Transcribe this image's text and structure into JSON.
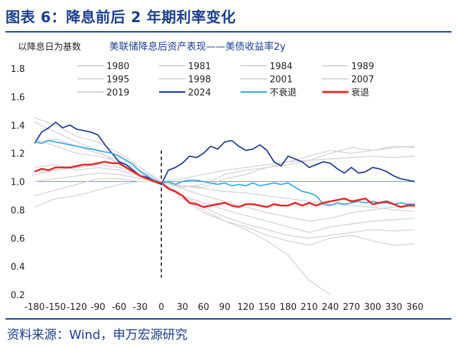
{
  "header": {
    "title": "图表 6：降息前后 2 年期利率变化"
  },
  "footer": {
    "source": "资料来源：Wind，申万宏源研究"
  },
  "chart_data": {
    "type": "line",
    "title": "美联储降息后资产表现——美债收益率2y",
    "ylabel": "以降息日为基数",
    "xlabel": "",
    "xlim": [
      -180,
      360
    ],
    "ylim": [
      0.2,
      1.8
    ],
    "xticks": [
      -180,
      -150,
      -120,
      -90,
      -60,
      -30,
      0,
      30,
      60,
      90,
      120,
      150,
      180,
      210,
      240,
      270,
      300,
      330,
      360
    ],
    "yticks": [
      "0.2",
      "0.4",
      "0.6",
      "0.8",
      "1.0",
      "1.2",
      "1.4",
      "1.6",
      "1.8"
    ],
    "reference_line_y": 1.0,
    "vertical_marker_x": 0,
    "legend_placement": "top",
    "colors": {
      "historical": "#d3d3d3",
      "y2024": "#1f3a8f",
      "no_recession": "#3aa8e0",
      "recession": "#e8262b",
      "reference": "#7f97c9",
      "marker": "#000000"
    },
    "series": [
      {
        "name": "1980",
        "x": [
          -180,
          -150,
          -120,
          -90,
          -60,
          -30,
          0,
          30,
          60,
          90,
          120,
          150,
          180,
          210,
          240
        ],
        "values": [
          1.42,
          1.35,
          1.28,
          1.22,
          1.12,
          1.05,
          1.0,
          0.88,
          0.78,
          0.72,
          0.66,
          0.58,
          0.48,
          0.3,
          0.2
        ]
      },
      {
        "name": "1981",
        "x": [
          -180,
          -150,
          -120,
          -90,
          -60,
          -30,
          0,
          30,
          60,
          90,
          120,
          150,
          180,
          210,
          240,
          270,
          300,
          330,
          360
        ],
        "values": [
          0.82,
          0.88,
          0.9,
          0.94,
          0.98,
          1.0,
          1.0,
          0.97,
          0.96,
          1.02,
          1.05,
          1.1,
          1.12,
          1.15,
          1.2,
          1.24,
          1.22,
          1.24,
          1.25
        ]
      },
      {
        "name": "1984",
        "x": [
          -180,
          -150,
          -120,
          -90,
          -60,
          -30,
          0,
          30,
          60,
          90,
          120,
          150,
          180,
          210,
          240,
          270,
          300,
          330,
          360
        ],
        "values": [
          1.45,
          1.4,
          1.32,
          1.28,
          1.2,
          1.1,
          1.0,
          0.95,
          0.9,
          0.86,
          0.82,
          0.78,
          0.75,
          0.72,
          0.74,
          0.78,
          0.8,
          0.82,
          0.84
        ]
      },
      {
        "name": "1989",
        "x": [
          -180,
          -150,
          -120,
          -90,
          -60,
          -30,
          0,
          30,
          60,
          90,
          120,
          150,
          180,
          210,
          240,
          270,
          300,
          330,
          360
        ],
        "values": [
          0.9,
          0.94,
          0.98,
          1.02,
          1.02,
          1.0,
          1.0,
          0.97,
          0.95,
          0.93,
          0.92,
          0.9,
          0.88,
          0.86,
          0.84,
          0.83,
          0.82,
          0.8,
          0.79
        ]
      },
      {
        "name": "1995",
        "x": [
          -180,
          -150,
          -120,
          -90,
          -60,
          -30,
          0,
          30,
          60,
          90,
          120,
          150,
          180,
          210,
          240,
          270,
          300,
          330,
          360
        ],
        "values": [
          1.05,
          1.08,
          1.1,
          1.12,
          1.1,
          1.05,
          1.0,
          1.02,
          1.05,
          1.08,
          1.1,
          1.12,
          1.14,
          1.15,
          1.16,
          1.17,
          1.18,
          1.17,
          1.18
        ]
      },
      {
        "name": "1998",
        "x": [
          -180,
          -150,
          -120,
          -90,
          -60,
          -30,
          0,
          30,
          60,
          90,
          120,
          150,
          180,
          210,
          240,
          270,
          300,
          330,
          360
        ],
        "values": [
          1.1,
          1.12,
          1.08,
          1.1,
          1.08,
          1.04,
          1.0,
          0.96,
          0.98,
          1.05,
          1.08,
          1.1,
          1.14,
          1.18,
          1.22,
          1.2,
          1.22,
          1.25,
          1.24
        ]
      },
      {
        "name": "2001",
        "x": [
          -180,
          -150,
          -120,
          -90,
          -60,
          -30,
          0,
          30,
          60,
          90,
          120,
          150,
          180,
          210,
          240,
          270,
          300,
          330,
          360
        ],
        "values": [
          1.3,
          1.25,
          1.2,
          1.18,
          1.14,
          1.08,
          1.0,
          0.88,
          0.8,
          0.72,
          0.68,
          0.62,
          0.58,
          0.55,
          0.6,
          0.62,
          0.58,
          0.55,
          0.56
        ]
      },
      {
        "name": "2007",
        "x": [
          -180,
          -150,
          -120,
          -90,
          -60,
          -30,
          0,
          30,
          60,
          90,
          120,
          150,
          180,
          210,
          240,
          270,
          300,
          330,
          360
        ],
        "values": [
          1.28,
          1.3,
          1.25,
          1.2,
          1.15,
          1.05,
          1.0,
          0.9,
          0.82,
          0.75,
          0.7,
          0.66,
          0.62,
          0.6,
          0.62,
          0.64,
          0.66,
          0.65,
          0.66
        ]
      },
      {
        "name": "2019",
        "x": [
          -180,
          -150,
          -120,
          -90,
          -60,
          -30,
          0,
          30,
          60,
          90,
          120,
          150,
          180,
          210,
          240,
          270,
          300,
          330,
          360
        ],
        "values": [
          1.0,
          1.02,
          1.04,
          1.06,
          1.05,
          1.02,
          1.0,
          0.9,
          0.85,
          0.8,
          0.76,
          0.72,
          0.68,
          0.64,
          0.68,
          0.7,
          0.72,
          0.73,
          0.74
        ]
      },
      {
        "name": "2024",
        "x": [
          -180,
          -170,
          -160,
          -150,
          -140,
          -130,
          -120,
          -110,
          -100,
          -90,
          -80,
          -70,
          -60,
          -50,
          -40,
          -30,
          -20,
          -10,
          0,
          10,
          20,
          30,
          40,
          50,
          60,
          70,
          80,
          90,
          100,
          110,
          120,
          130,
          140,
          150,
          160,
          170,
          180,
          190,
          200,
          210,
          220,
          230,
          240,
          250,
          260,
          270,
          280,
          290,
          300,
          310,
          320,
          330,
          340,
          350,
          360
        ],
        "values": [
          1.27,
          1.35,
          1.38,
          1.42,
          1.38,
          1.4,
          1.37,
          1.36,
          1.35,
          1.33,
          1.26,
          1.2,
          1.14,
          1.12,
          1.08,
          1.04,
          1.03,
          1.0,
          0.98,
          1.08,
          1.1,
          1.13,
          1.18,
          1.17,
          1.2,
          1.25,
          1.23,
          1.28,
          1.29,
          1.25,
          1.22,
          1.23,
          1.26,
          1.22,
          1.14,
          1.11,
          1.18,
          1.16,
          1.14,
          1.1,
          1.12,
          1.14,
          1.13,
          1.09,
          1.06,
          1.1,
          1.06,
          1.07,
          1.1,
          1.09,
          1.07,
          1.04,
          1.02,
          1.01,
          1.0
        ]
      },
      {
        "name": "不衰退",
        "x": [
          -180,
          -170,
          -160,
          -150,
          -140,
          -130,
          -120,
          -110,
          -100,
          -90,
          -80,
          -70,
          -60,
          -50,
          -40,
          -30,
          -20,
          -10,
          0,
          10,
          20,
          30,
          40,
          50,
          60,
          70,
          80,
          90,
          100,
          110,
          120,
          130,
          140,
          150,
          160,
          170,
          180,
          190,
          200,
          210,
          220,
          230,
          240,
          250,
          260,
          270,
          280,
          290,
          300,
          310,
          320,
          330,
          340,
          350,
          360
        ],
        "values": [
          1.28,
          1.27,
          1.29,
          1.28,
          1.27,
          1.26,
          1.25,
          1.24,
          1.23,
          1.22,
          1.21,
          1.2,
          1.18,
          1.15,
          1.12,
          1.07,
          1.04,
          1.01,
          0.99,
          1.0,
          0.98,
          1.0,
          1.01,
          1.01,
          1.0,
          0.99,
          0.98,
          0.99,
          0.97,
          0.98,
          0.97,
          0.99,
          0.97,
          0.98,
          0.99,
          0.98,
          0.99,
          0.96,
          0.93,
          0.92,
          0.9,
          0.84,
          0.83,
          0.85,
          0.84,
          0.85,
          0.86,
          0.85,
          0.86,
          0.85,
          0.85,
          0.84,
          0.85,
          0.84,
          0.84
        ]
      },
      {
        "name": "衰退",
        "x": [
          -180,
          -170,
          -160,
          -150,
          -140,
          -130,
          -120,
          -110,
          -100,
          -90,
          -80,
          -70,
          -60,
          -50,
          -40,
          -30,
          -20,
          -10,
          0,
          10,
          20,
          30,
          40,
          50,
          60,
          70,
          80,
          90,
          100,
          110,
          120,
          130,
          140,
          150,
          160,
          170,
          180,
          190,
          200,
          210,
          220,
          230,
          240,
          250,
          260,
          270,
          280,
          290,
          300,
          310,
          320,
          330,
          340,
          350,
          360
        ],
        "values": [
          1.07,
          1.09,
          1.08,
          1.1,
          1.1,
          1.1,
          1.11,
          1.12,
          1.12,
          1.13,
          1.14,
          1.13,
          1.13,
          1.1,
          1.07,
          1.04,
          1.02,
          1.0,
          0.99,
          0.95,
          0.93,
          0.9,
          0.85,
          0.84,
          0.82,
          0.83,
          0.84,
          0.85,
          0.83,
          0.82,
          0.84,
          0.84,
          0.83,
          0.82,
          0.84,
          0.83,
          0.83,
          0.85,
          0.83,
          0.85,
          0.83,
          0.85,
          0.86,
          0.87,
          0.88,
          0.86,
          0.87,
          0.88,
          0.84,
          0.85,
          0.86,
          0.84,
          0.82,
          0.83,
          0.83
        ]
      }
    ]
  }
}
